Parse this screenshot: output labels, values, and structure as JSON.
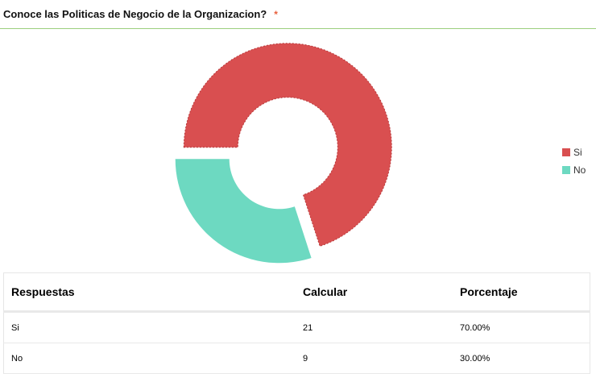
{
  "question": {
    "title": "Conoce las Politicas de Negocio de la Organizacion?",
    "required_marker": "*"
  },
  "chart_data": {
    "type": "pie",
    "style": "donut",
    "categories": [
      "Si",
      "No"
    ],
    "values": [
      21,
      9
    ],
    "colors": [
      "#d94f50",
      "#6dd9c1"
    ],
    "legend_position": "right"
  },
  "table": {
    "headers": [
      "Respuestas",
      "Calcular",
      "Porcentaje"
    ],
    "rows": [
      [
        "Si",
        "21",
        "70.00%"
      ],
      [
        "No",
        "9",
        "30.00%"
      ]
    ]
  }
}
